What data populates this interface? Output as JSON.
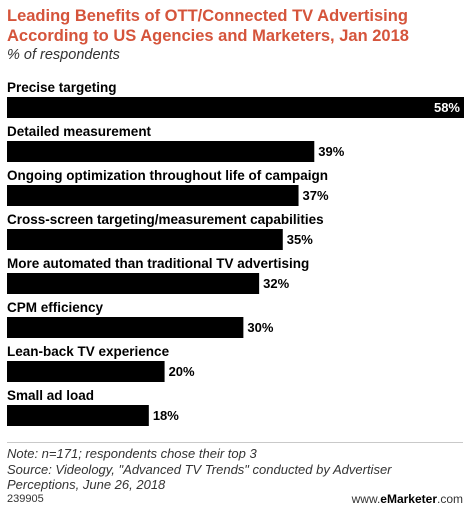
{
  "chart_data": {
    "type": "bar",
    "orientation": "horizontal",
    "title": "Leading Benefits of OTT/Connected TV Advertising According to US Agencies and Marketers, Jan 2018",
    "subtitle": "% of respondents",
    "categories": [
      "Precise targeting",
      "Detailed measurement",
      "Ongoing optimization throughout life of campaign",
      "Cross-screen targeting/measurement capabilities",
      "More automated than traditional TV advertising",
      "CPM efficiency",
      "Lean-back TV experience",
      "Small ad load"
    ],
    "values": [
      58,
      39,
      37,
      35,
      32,
      30,
      20,
      18
    ],
    "value_labels": [
      "58%",
      "39%",
      "37%",
      "35%",
      "32%",
      "30%",
      "20%",
      "18%"
    ],
    "xlim": [
      0,
      58
    ],
    "grid": false,
    "bar_color": "#000000"
  },
  "notes": {
    "note": "Note: n=171; respondents chose their top 3",
    "source": "Source: Videology, \"Advanced TV Trends\" conducted by Advertiser Perceptions, June 26, 2018"
  },
  "footer": {
    "id": "239905",
    "brand_prefix": "www.",
    "brand_name": "eMarketer",
    "brand_suffix": ".com"
  },
  "colors": {
    "title": "#d5543b",
    "bar": "#000000",
    "inside_label": "#ffffff",
    "outside_label": "#000000"
  }
}
